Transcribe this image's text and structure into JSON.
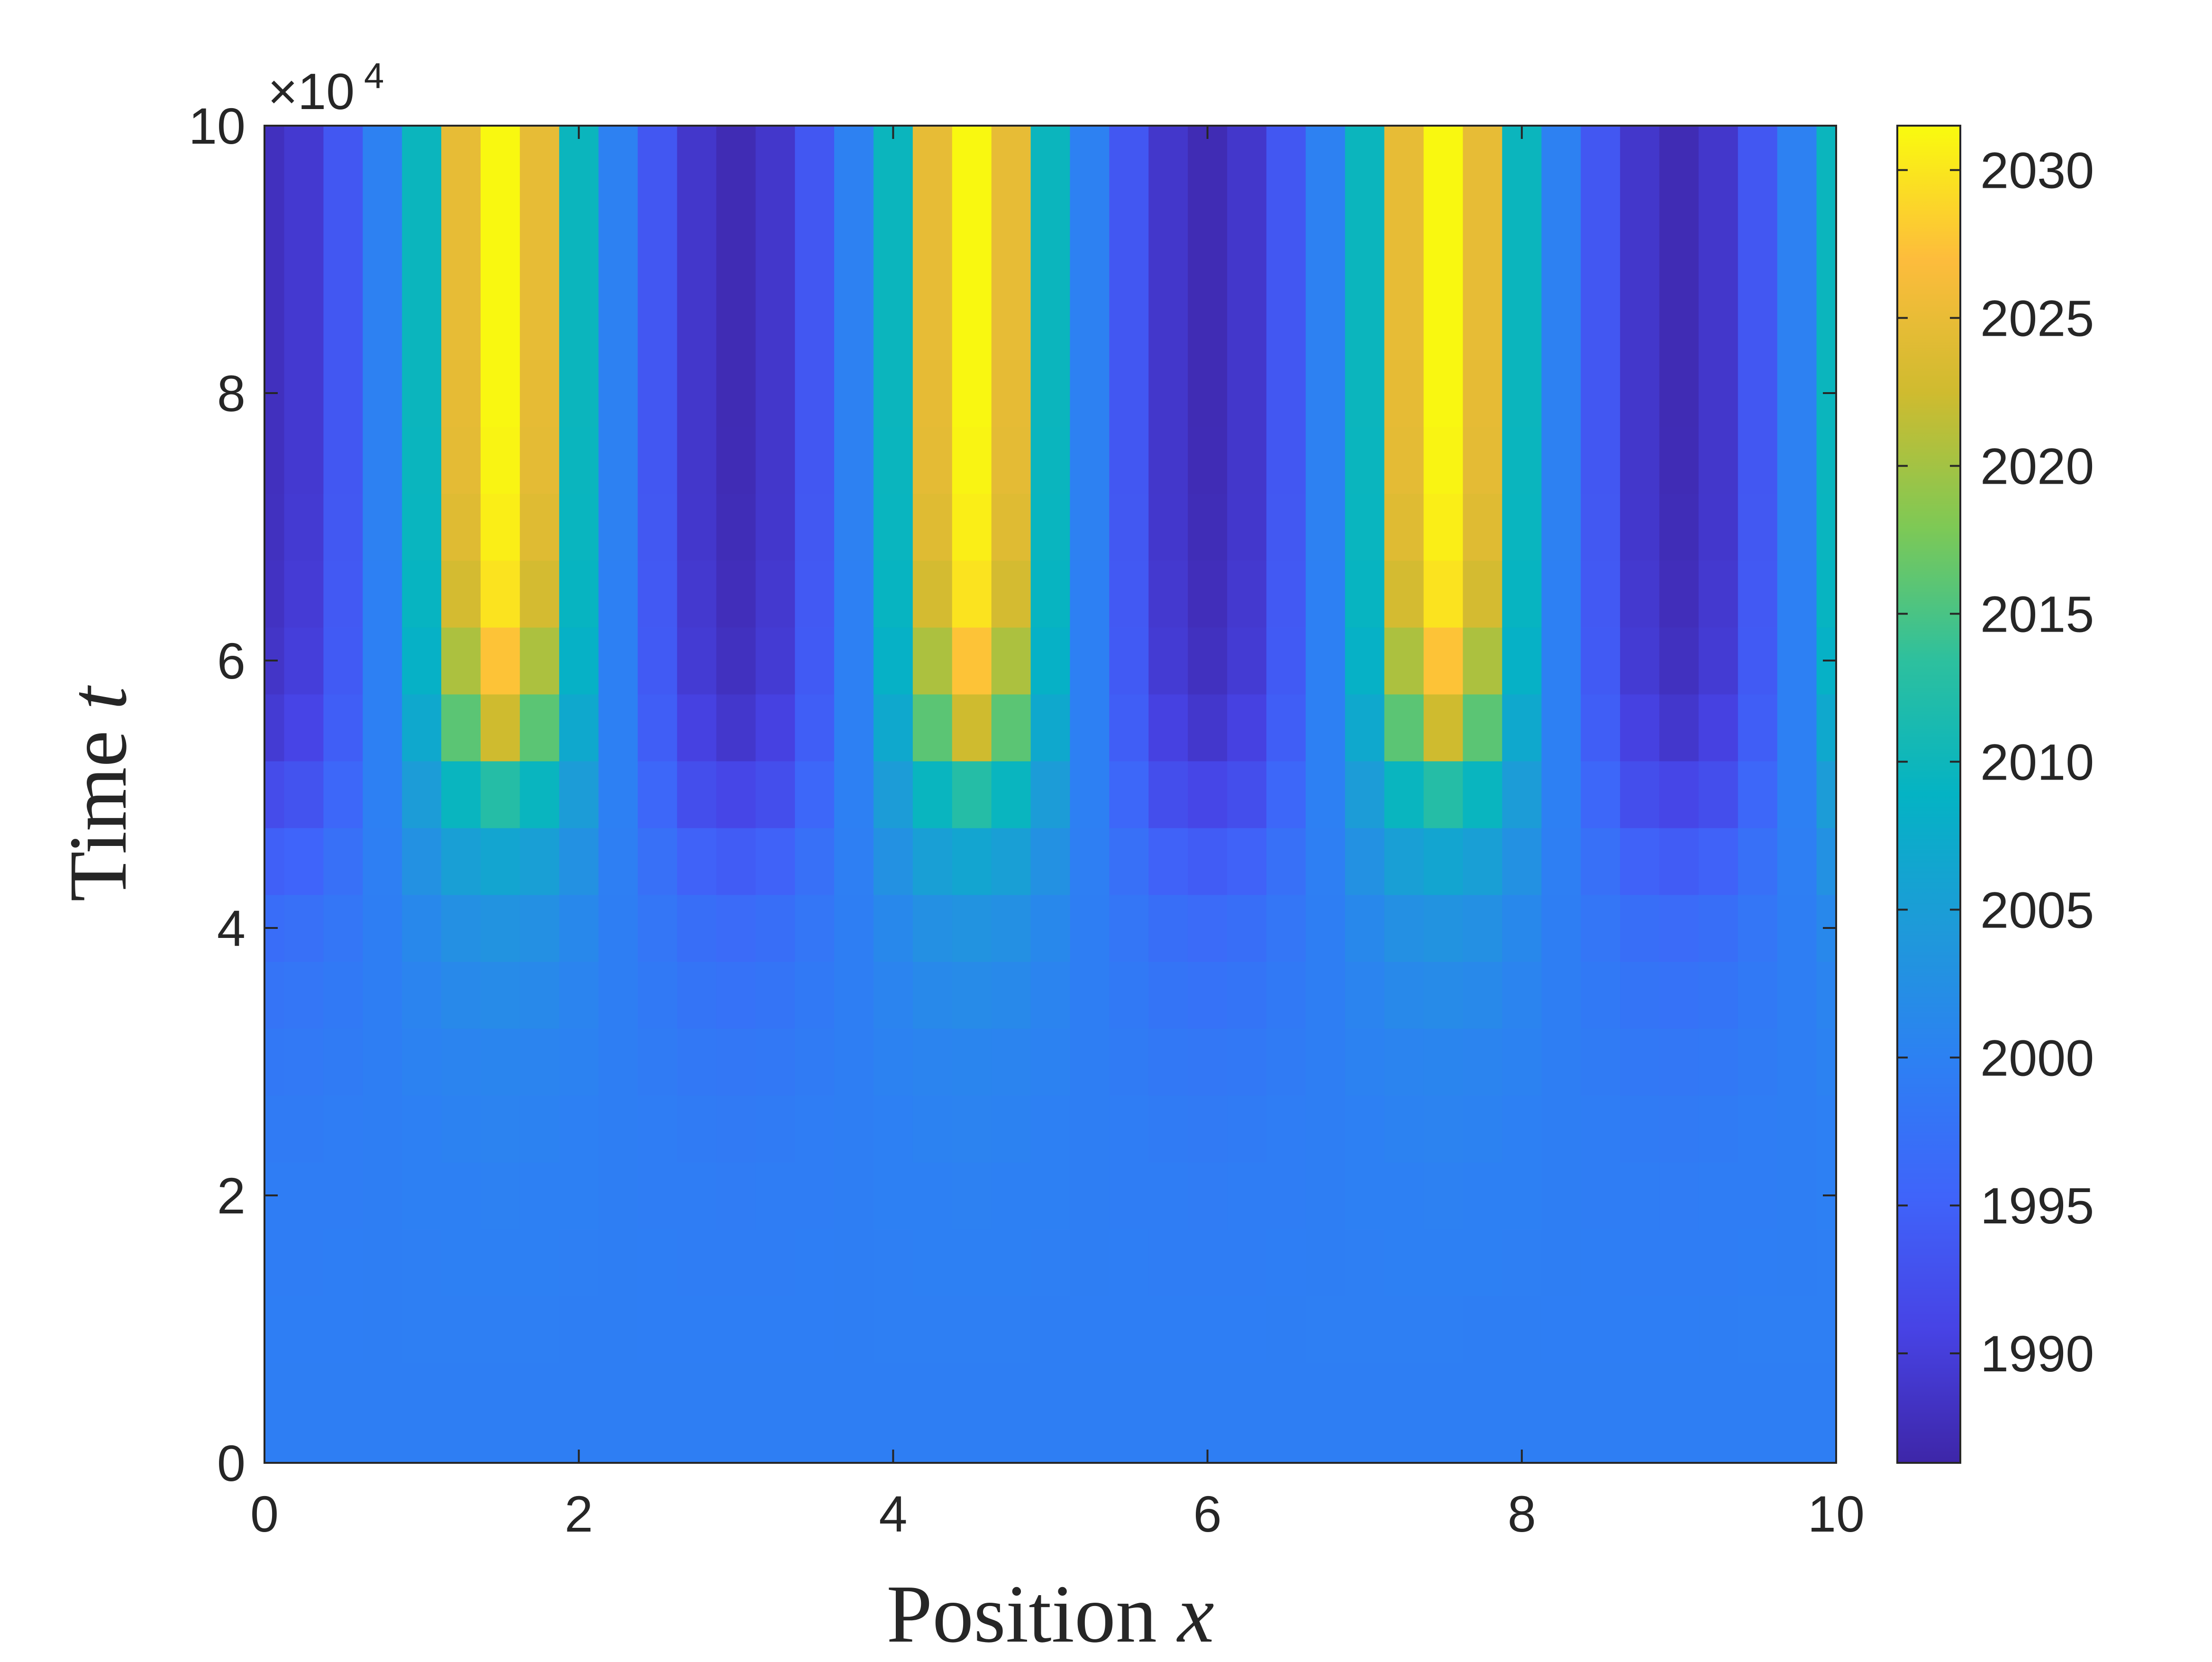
{
  "chart_data": {
    "type": "heatmap",
    "x": [
      0,
      0.25,
      0.5,
      0.75,
      1,
      1.25,
      1.5,
      1.75,
      2,
      2.25,
      2.5,
      2.75,
      3,
      3.25,
      3.5,
      3.75,
      4,
      4.25,
      4.5,
      4.75,
      5,
      5.25,
      5.5,
      5.75,
      6,
      6.25,
      6.5,
      6.75,
      7,
      7.25,
      7.5,
      7.75,
      8,
      8.25,
      8.5,
      8.75,
      9,
      9.25,
      9.5,
      9.75,
      10
    ],
    "y": [
      0,
      5000,
      10000,
      15000,
      20000,
      25000,
      30000,
      35000,
      40000,
      45000,
      50000,
      55000,
      60000,
      65000,
      70000,
      75000,
      80000,
      85000,
      90000,
      95000,
      100000
    ],
    "values": [
      [
        1999.6,
        1999.6,
        1999.6,
        1999.6,
        1999.6,
        1999.6,
        1999.6,
        1999.6,
        1999.6,
        1999.6,
        1999.6,
        1999.6,
        1999.6,
        1999.6,
        1999.6,
        1999.6,
        1999.6,
        1999.6,
        1999.6,
        1999.6,
        1999.6,
        1999.6,
        1999.6,
        1999.6,
        1999.6,
        1999.6,
        1999.6,
        1999.6,
        1999.6,
        1999.6,
        1999.6,
        1999.6,
        1999.6,
        1999.6,
        1999.6,
        1999.6,
        1999.6,
        1999.6,
        1999.6,
        1999.6,
        1999.6
      ],
      [
        1999.6,
        1999.6,
        1999.6,
        1999.6,
        1999.6,
        1999.6,
        1999.6,
        1999.6,
        1999.6,
        1999.6,
        1999.6,
        1999.6,
        1999.6,
        1999.6,
        1999.6,
        1999.6,
        1999.6,
        1999.6,
        1999.6,
        1999.6,
        1999.6,
        1999.6,
        1999.6,
        1999.6,
        1999.6,
        1999.6,
        1999.6,
        1999.6,
        1999.6,
        1999.6,
        1999.6,
        1999.6,
        1999.6,
        1999.6,
        1999.6,
        1999.6,
        1999.6,
        1999.6,
        1999.6,
        1999.6,
        1999.6
      ],
      [
        1999.5,
        1999.5,
        1999.5,
        1999.6,
        1999.7,
        1999.7,
        1999.7,
        1999.7,
        1999.6,
        1999.6,
        1999.5,
        1999.5,
        1999.5,
        1999.5,
        1999.5,
        1999.6,
        1999.7,
        1999.7,
        1999.7,
        1999.7,
        1999.6,
        1999.5,
        1999.5,
        1999.5,
        1999.5,
        1999.5,
        1999.6,
        1999.7,
        1999.7,
        1999.7,
        1999.7,
        1999.6,
        1999.6,
        1999.5,
        1999.5,
        1999.5,
        1999.5,
        1999.6,
        1999.7,
        1999.7,
        1999.7
      ],
      [
        1999.4,
        1999.4,
        1999.5,
        1999.6,
        1999.7,
        1999.8,
        1999.8,
        1999.8,
        1999.7,
        1999.6,
        1999.5,
        1999.4,
        1999.4,
        1999.4,
        1999.5,
        1999.6,
        1999.7,
        1999.8,
        1999.8,
        1999.8,
        1999.7,
        1999.6,
        1999.5,
        1999.4,
        1999.4,
        1999.4,
        1999.5,
        1999.6,
        1999.7,
        1999.8,
        1999.8,
        1999.8,
        1999.7,
        1999.6,
        1999.5,
        1999.4,
        1999.4,
        1999.4,
        1999.5,
        1999.6,
        1999.7
      ],
      [
        1999.3,
        1999.3,
        1999.4,
        1999.6,
        1999.8,
        1999.9,
        2000.0,
        1999.9,
        1999.8,
        1999.6,
        1999.4,
        1999.3,
        1999.2,
        1999.3,
        1999.4,
        1999.6,
        1999.8,
        1999.9,
        2000.0,
        1999.9,
        1999.8,
        1999.6,
        1999.4,
        1999.3,
        1999.2,
        1999.3,
        1999.4,
        1999.6,
        1999.8,
        1999.9,
        2000.0,
        1999.9,
        1999.8,
        1999.6,
        1999.4,
        1999.3,
        1999.2,
        1999.3,
        1999.4,
        1999.6,
        1999.8
      ],
      [
        1999.0,
        1999.1,
        1999.3,
        1999.6,
        1999.9,
        2000.2,
        2000.3,
        2000.2,
        1999.9,
        1999.6,
        1999.3,
        1999.0,
        1998.9,
        1999.0,
        1999.3,
        1999.6,
        1999.9,
        2000.2,
        2000.3,
        2000.2,
        1999.9,
        1999.6,
        1999.3,
        1999.0,
        1998.9,
        1999.0,
        1999.3,
        1999.6,
        1999.9,
        2000.2,
        2000.3,
        2000.2,
        1999.9,
        1999.6,
        1999.3,
        1999.0,
        1998.9,
        1999.0,
        1999.3,
        1999.6,
        1999.9
      ],
      [
        1998.6,
        1998.7,
        1999.0,
        1999.6,
        2000.2,
        2000.6,
        2000.8,
        2000.6,
        2000.2,
        1999.6,
        1999.0,
        1998.6,
        1998.4,
        1998.6,
        1999.0,
        1999.6,
        2000.2,
        2000.6,
        2000.8,
        2000.6,
        2000.2,
        1999.6,
        1999.0,
        1998.6,
        1998.4,
        1998.6,
        1999.0,
        1999.6,
        2000.2,
        2000.6,
        2000.8,
        2000.6,
        2000.2,
        1999.6,
        1999.0,
        1998.6,
        1998.4,
        1998.6,
        1999.0,
        1999.6,
        2000.2
      ],
      [
        1997.9,
        1998.2,
        1998.8,
        1999.6,
        2000.6,
        2001.4,
        2001.7,
        2001.4,
        2000.6,
        1999.6,
        1998.8,
        1998.0,
        1997.6,
        1998.0,
        1998.8,
        1999.6,
        2000.6,
        2001.4,
        2001.7,
        2001.4,
        2000.6,
        1999.6,
        1998.8,
        1998.0,
        1997.6,
        1998.0,
        1998.8,
        1999.6,
        2000.6,
        2001.4,
        2001.7,
        2001.4,
        2000.6,
        1999.6,
        1998.8,
        1998.0,
        1997.6,
        1998.0,
        1998.8,
        1999.6,
        2000.6
      ],
      [
        1996.8,
        1997.2,
        1998.2,
        1999.6,
        2001.3,
        2002.6,
        2003.2,
        2002.6,
        2001.3,
        1999.6,
        1998.2,
        1997.0,
        1996.4,
        1997.0,
        1998.2,
        1999.6,
        2001.3,
        2002.6,
        2003.2,
        2002.6,
        2001.3,
        1999.6,
        1998.2,
        1997.0,
        1996.4,
        1997.0,
        1998.2,
        1999.6,
        2001.3,
        2002.6,
        2003.2,
        2002.6,
        2001.3,
        1999.6,
        1998.2,
        1997.0,
        1996.4,
        1997.0,
        1998.2,
        1999.6,
        2001.3
      ],
      [
        1994.8,
        1995.4,
        1997.2,
        1999.7,
        2002.8,
        2005.2,
        2006.3,
        2005.2,
        2002.8,
        1999.7,
        1997.2,
        1995.0,
        1994.2,
        1995.0,
        1997.2,
        1999.7,
        2002.8,
        2005.2,
        2006.3,
        2005.2,
        2002.8,
        1999.7,
        1997.2,
        1995.0,
        1994.2,
        1995.0,
        1997.2,
        1999.7,
        2002.8,
        2005.2,
        2006.3,
        2005.2,
        2002.8,
        1999.7,
        1997.2,
        1995.0,
        1994.2,
        1995.0,
        1997.2,
        1999.7,
        2002.8
      ],
      [
        1992.0,
        1993.0,
        1995.8,
        1999.8,
        2004.8,
        2009.5,
        2012.5,
        2009.5,
        2004.8,
        1999.8,
        1995.8,
        1992.3,
        1991.2,
        1992.3,
        1995.8,
        1999.8,
        2004.8,
        2009.5,
        2012.5,
        2009.5,
        2004.8,
        1999.8,
        1995.8,
        1992.3,
        1991.2,
        1992.3,
        1995.8,
        1999.8,
        2004.8,
        2009.5,
        2012.5,
        2009.5,
        2004.8,
        1999.8,
        1995.8,
        1992.3,
        1991.2,
        1992.3,
        1995.8,
        1999.8,
        2004.8
      ],
      [
        1989.5,
        1991.0,
        1994.5,
        1999.8,
        2007.0,
        2016.0,
        2022.5,
        2016.0,
        2007.0,
        1999.8,
        1994.5,
        1990.5,
        1989.0,
        1990.5,
        1994.5,
        1999.8,
        2007.0,
        2016.0,
        2022.5,
        2016.0,
        2007.0,
        1999.8,
        1994.5,
        1990.5,
        1989.0,
        1990.5,
        1994.5,
        1999.8,
        2007.0,
        2016.0,
        2022.5,
        2016.0,
        2007.0,
        1999.8,
        1994.5,
        1990.5,
        1989.0,
        1990.5,
        1994.5,
        1999.8,
        2007.0
      ],
      [
        1988.6,
        1990.0,
        1994.0,
        1999.9,
        2008.5,
        2020.5,
        2027.5,
        2020.5,
        2008.5,
        1999.9,
        1994.0,
        1989.5,
        1988.0,
        1989.5,
        1994.0,
        1999.9,
        2008.5,
        2020.5,
        2027.5,
        2020.5,
        2008.5,
        1999.9,
        1994.0,
        1989.5,
        1988.0,
        1989.5,
        1994.0,
        1999.9,
        2008.5,
        2020.5,
        2027.5,
        2020.5,
        2008.5,
        1999.9,
        1994.0,
        1989.5,
        1988.0,
        1989.5,
        1994.0,
        1999.9,
        2008.5
      ],
      [
        1988.2,
        1989.6,
        1993.8,
        1999.9,
        2009.2,
        2023.0,
        2029.8,
        2023.0,
        2009.2,
        1999.9,
        1993.8,
        1989.2,
        1987.6,
        1989.2,
        1993.8,
        1999.9,
        2009.2,
        2023.0,
        2029.8,
        2023.0,
        2009.2,
        1999.9,
        1993.8,
        1989.2,
        1987.6,
        1989.2,
        1993.8,
        1999.9,
        2009.2,
        2023.0,
        2029.8,
        2023.0,
        2009.2,
        1999.9,
        1993.8,
        1989.2,
        1987.6,
        1989.2,
        1993.8,
        1999.9,
        2009.2
      ],
      [
        1988.0,
        1989.4,
        1993.7,
        2000.0,
        2009.5,
        2024.0,
        2030.6,
        2024.0,
        2009.5,
        2000.0,
        1993.7,
        1989.0,
        1987.4,
        1989.0,
        1993.7,
        2000.0,
        2009.5,
        2024.0,
        2030.6,
        2024.0,
        2009.5,
        2000.0,
        1993.7,
        1989.0,
        1987.4,
        1989.0,
        1993.7,
        2000.0,
        2009.5,
        2024.0,
        2030.6,
        2024.0,
        2009.5,
        2000.0,
        1993.7,
        1989.0,
        1987.4,
        1989.0,
        1993.7,
        2000.0,
        2009.5
      ],
      [
        1987.9,
        1989.3,
        1993.6,
        2000.0,
        2009.6,
        2024.5,
        2031.0,
        2024.5,
        2009.6,
        2000.0,
        1993.6,
        1988.9,
        1987.3,
        1988.9,
        1993.6,
        2000.0,
        2009.6,
        2024.5,
        2031.0,
        2024.5,
        2009.6,
        2000.0,
        1993.6,
        1988.9,
        1987.3,
        1988.9,
        1993.6,
        2000.0,
        2009.6,
        2024.5,
        2031.0,
        2024.5,
        2009.6,
        2000.0,
        1993.6,
        1988.9,
        1987.3,
        1988.9,
        1993.6,
        2000.0,
        2009.6
      ],
      [
        1987.9,
        1989.3,
        1993.6,
        2000.0,
        2009.7,
        2024.7,
        2031.2,
        2024.7,
        2009.7,
        2000.0,
        1993.6,
        1988.9,
        1987.2,
        1988.9,
        1993.6,
        2000.0,
        2009.7,
        2024.7,
        2031.2,
        2024.7,
        2009.7,
        2000.0,
        1993.6,
        1988.9,
        1987.2,
        1988.9,
        1993.6,
        2000.0,
        2009.7,
        2024.7,
        2031.2,
        2024.7,
        2009.7,
        2000.0,
        1993.6,
        1988.9,
        1987.2,
        1988.9,
        1993.6,
        2000.0,
        2009.7
      ],
      [
        1987.9,
        1989.3,
        1993.6,
        2000.0,
        2009.7,
        2024.8,
        2031.3,
        2024.8,
        2009.7,
        2000.0,
        1993.6,
        1988.9,
        1987.2,
        1988.9,
        1993.6,
        2000.0,
        2009.7,
        2024.8,
        2031.3,
        2024.8,
        2009.7,
        2000.0,
        1993.6,
        1988.9,
        1987.2,
        1988.9,
        1993.6,
        2000.0,
        2009.7,
        2024.8,
        2031.3,
        2024.8,
        2009.7,
        2000.0,
        1993.6,
        1988.9,
        1987.2,
        1988.9,
        1993.6,
        2000.0,
        2009.7
      ],
      [
        1987.9,
        1989.3,
        1993.6,
        2000.0,
        2009.7,
        2024.8,
        2031.3,
        2024.8,
        2009.7,
        2000.0,
        1993.6,
        1988.9,
        1987.2,
        1988.9,
        1993.6,
        2000.0,
        2009.7,
        2024.8,
        2031.3,
        2024.8,
        2009.7,
        2000.0,
        1993.6,
        1988.9,
        1987.2,
        1988.9,
        1993.6,
        2000.0,
        2009.7,
        2024.8,
        2031.3,
        2024.8,
        2009.7,
        2000.0,
        1993.6,
        1988.9,
        1987.2,
        1988.9,
        1993.6,
        2000.0,
        2009.7
      ],
      [
        1987.9,
        1989.3,
        1993.6,
        2000.0,
        2009.7,
        2024.8,
        2031.3,
        2024.8,
        2009.7,
        2000.0,
        1993.6,
        1988.9,
        1987.2,
        1988.9,
        1993.6,
        2000.0,
        2009.7,
        2024.8,
        2031.3,
        2024.8,
        2009.7,
        2000.0,
        1993.6,
        1988.9,
        1987.2,
        1988.9,
        1993.6,
        2000.0,
        2009.7,
        2024.8,
        2031.3,
        2024.8,
        2009.7,
        2000.0,
        1993.6,
        1988.9,
        1987.2,
        1988.9,
        1993.6,
        2000.0,
        2009.7
      ],
      [
        1987.9,
        1989.3,
        1993.6,
        2000.0,
        2009.7,
        2024.8,
        2031.3,
        2024.8,
        2009.7,
        2000.0,
        1993.6,
        1988.9,
        1987.2,
        1988.9,
        1993.6,
        2000.0,
        2009.7,
        2024.8,
        2031.3,
        2024.8,
        2009.7,
        2000.0,
        1993.6,
        1988.9,
        1987.2,
        1988.9,
        1993.6,
        2000.0,
        2009.7,
        2024.8,
        2031.3,
        2024.8,
        2009.7,
        2000.0,
        1993.6,
        1988.9,
        1987.2,
        1988.9,
        1993.6,
        2000.0,
        2009.7
      ]
    ],
    "xlim": [
      0,
      10
    ],
    "ylim": [
      0,
      100000
    ],
    "clim": [
      1986.3,
      2031.5
    ],
    "x_ticks": [
      "0",
      "2",
      "4",
      "6",
      "8",
      "10"
    ],
    "y_ticks": [
      "0",
      "2",
      "4",
      "6",
      "8",
      "10"
    ],
    "y_exponent_label": "×10",
    "y_exponent_power": "4",
    "xlabel_text": "Position ",
    "xlabel_var": "x",
    "ylabel_text": "Time ",
    "ylabel_var": "t",
    "colorbar_ticks": [
      "1990",
      "1995",
      "2000",
      "2005",
      "2010",
      "2015",
      "2020",
      "2025",
      "2030"
    ],
    "colormap": "parula",
    "grid": false
  }
}
